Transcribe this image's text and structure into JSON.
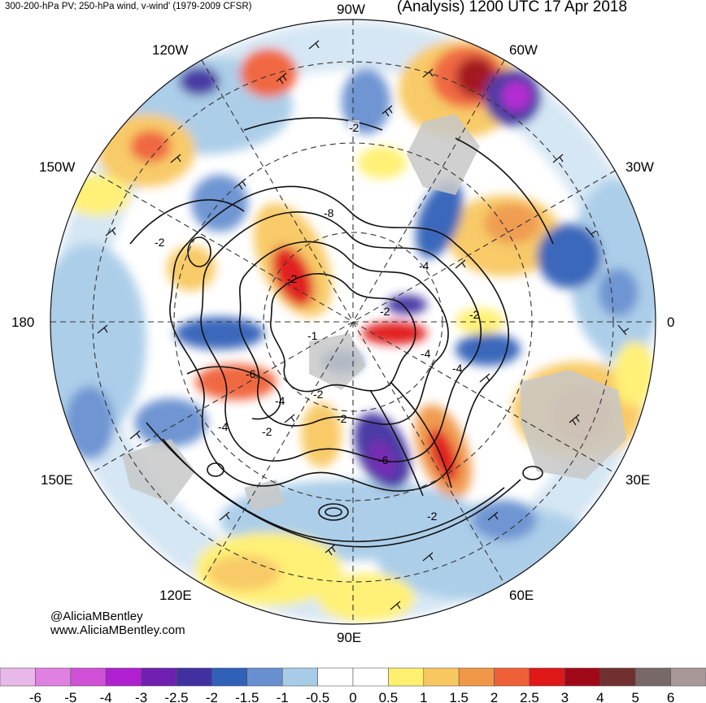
{
  "header": {
    "left": "300-200-hPa PV; 250-hPa wind, v-wind' (1979-2009 CFSR)",
    "right": "(Analysis) 1200 UTC 17 Apr 2018"
  },
  "credits": {
    "handle": "@AliciaMBentley",
    "url": "www.AliciaMBentley.com"
  },
  "longitude_labels": [
    "90W",
    "60W",
    "30W",
    "0",
    "30E",
    "60E",
    "90E",
    "120E",
    "150E",
    "180",
    "150W",
    "120W"
  ],
  "contour_labels": [
    "-2",
    "-8",
    "-2",
    "-4",
    "-2",
    "-2",
    "-1",
    "-4",
    "-6",
    "-4",
    "-2",
    "-6",
    "-2",
    "-2",
    "-2",
    "-4",
    "-2",
    "-4"
  ],
  "colorbar": {
    "ticks": [
      "-6",
      "-5",
      "-4",
      "-3",
      "-2.5",
      "-2",
      "-1.5",
      "-1",
      "-0.5",
      "0",
      "0.5",
      "1",
      "1.5",
      "2",
      "2.5",
      "3",
      "4",
      "5",
      "6"
    ],
    "colors": [
      "#e8b8e8",
      "#e080e0",
      "#d050d8",
      "#b020d0",
      "#7020b0",
      "#4030a0",
      "#3060b8",
      "#6890d0",
      "#a8cce8",
      "#ffffff",
      "#ffffff",
      "#fff070",
      "#f8c860",
      "#f09848",
      "#f06038",
      "#e01818",
      "#a00818",
      "#703030",
      "#786868",
      "#a89898"
    ]
  },
  "colors": {
    "land": "#c8c8c8",
    "contour": "#111111",
    "grid": "#333333"
  }
}
